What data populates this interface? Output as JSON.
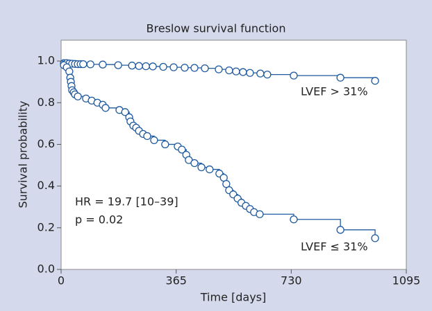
{
  "chart_data": {
    "type": "survival",
    "title": "Breslow survival function",
    "x_label": "Time [days]",
    "y_label": "Survival probability",
    "xlim": [
      0,
      1095
    ],
    "ylim": [
      0,
      1.1
    ],
    "xticks": [
      0,
      365,
      730,
      1095
    ],
    "yticks": [
      {
        "value": 0,
        "label": "0.0"
      },
      0.2,
      0.4,
      0.6,
      0.8,
      {
        "value": 1,
        "label": "1.0"
      }
    ],
    "annotations": [
      "HR = 19.7 [10–39]",
      "p = 0.02"
    ],
    "series": [
      {
        "name": "LVEF > 31%",
        "color": "#1f5aa0",
        "x": [
          9,
          18,
          26,
          35,
          44,
          53,
          62,
          70,
          93,
          132,
          181,
          225,
          247,
          269,
          291,
          324,
          357,
          392,
          423,
          456,
          500,
          533,
          555,
          577,
          599,
          632,
          654,
          738,
          886,
          996
        ],
        "values": [
          0.99,
          0.99,
          0.988,
          0.987,
          0.986,
          0.985,
          0.985,
          0.985,
          0.984,
          0.983,
          0.98,
          0.978,
          0.976,
          0.975,
          0.974,
          0.972,
          0.97,
          0.968,
          0.967,
          0.965,
          0.96,
          0.955,
          0.95,
          0.947,
          0.943,
          0.94,
          0.935,
          0.93,
          0.92,
          0.905
        ]
      },
      {
        "name": "LVEF ≤ 31%",
        "color": "#1f5aa0",
        "x": [
          9,
          18,
          26,
          29,
          31,
          33,
          35,
          40,
          44,
          53,
          79,
          97,
          115,
          132,
          141,
          185,
          203,
          216,
          220,
          229,
          238,
          247,
          260,
          273,
          295,
          330,
          370,
          383,
          397,
          405,
          423,
          445,
          471,
          502,
          516,
          524,
          533,
          546,
          560,
          572,
          586,
          599,
          612,
          630,
          738,
          886,
          996
        ],
        "values": [
          0.98,
          0.97,
          0.95,
          0.92,
          0.9,
          0.88,
          0.86,
          0.85,
          0.84,
          0.83,
          0.82,
          0.81,
          0.8,
          0.79,
          0.775,
          0.765,
          0.755,
          0.73,
          0.71,
          0.69,
          0.68,
          0.665,
          0.65,
          0.64,
          0.62,
          0.6,
          0.59,
          0.575,
          0.55,
          0.525,
          0.51,
          0.49,
          0.48,
          0.46,
          0.44,
          0.41,
          0.38,
          0.36,
          0.34,
          0.32,
          0.305,
          0.29,
          0.275,
          0.265,
          0.24,
          0.19,
          0.15
        ]
      }
    ]
  }
}
